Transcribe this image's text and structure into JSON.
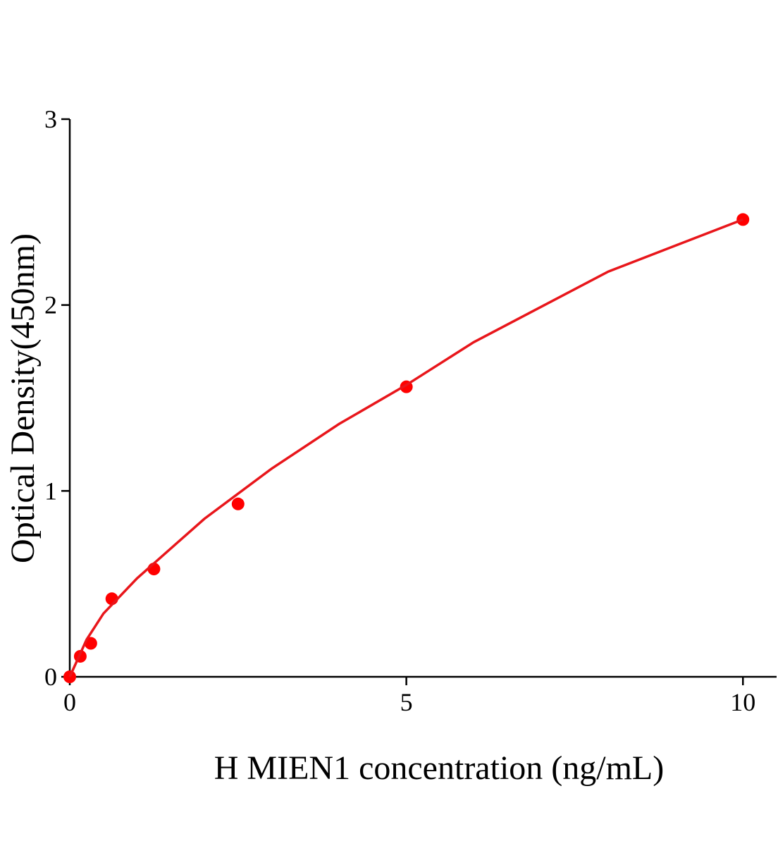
{
  "chart_data": {
    "type": "scatter",
    "x_label": "H MIEN1 concentration (ng/mL)",
    "y_label": "Optical Density(450nm)",
    "xlim": [
      0,
      10.5
    ],
    "xticks": [
      0,
      5,
      10
    ],
    "ylim": [
      0,
      3
    ],
    "yticks": [
      0,
      1,
      2,
      3
    ],
    "series": [
      {
        "mode": "markers",
        "color": "#ff0000",
        "x": [
          0,
          0.156,
          0.3125,
          0.625,
          1.25,
          2.5,
          5,
          10
        ],
        "values": [
          0,
          0.11,
          0.18,
          0.42,
          0.58,
          0.93,
          1.56,
          2.46
        ]
      },
      {
        "mode": "line",
        "color": "#e8161b",
        "x": [
          0,
          0.25,
          0.5,
          1,
          2,
          3,
          4,
          5,
          6,
          7,
          8,
          9,
          10
        ],
        "values": [
          0,
          0.2,
          0.34,
          0.53,
          0.85,
          1.12,
          1.36,
          1.57,
          1.8,
          1.99,
          2.18,
          2.32,
          2.46
        ]
      }
    ]
  }
}
